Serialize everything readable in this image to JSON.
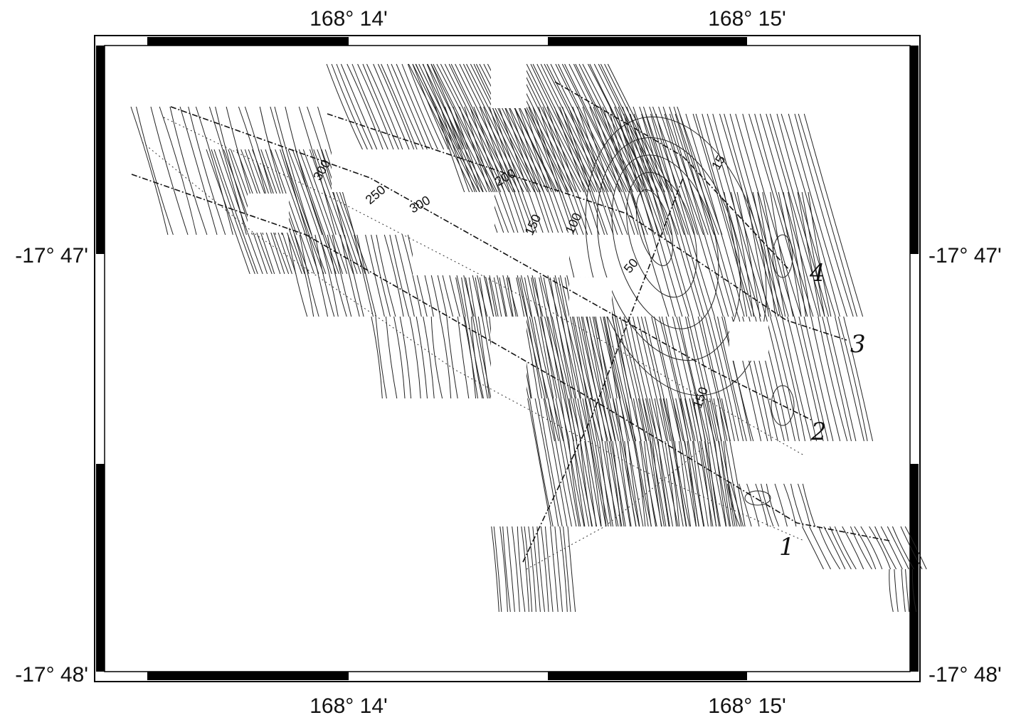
{
  "map": {
    "axes": {
      "top": [
        "168° 14'",
        "168° 15'"
      ],
      "bottom": [
        "168° 14'",
        "168° 15'"
      ],
      "left": [
        "-17° 47'",
        "-17° 48'"
      ],
      "right": [
        "-17° 47'",
        "-17° 48'"
      ]
    },
    "contour_labels": [
      "300",
      "250",
      "200",
      "150",
      "100",
      "50",
      "150",
      "300",
      "15"
    ],
    "line_labels": [
      "1",
      "2",
      "3",
      "4"
    ],
    "colors": {
      "ink": "#111111",
      "frame": "#000000",
      "background": "#ffffff"
    }
  }
}
